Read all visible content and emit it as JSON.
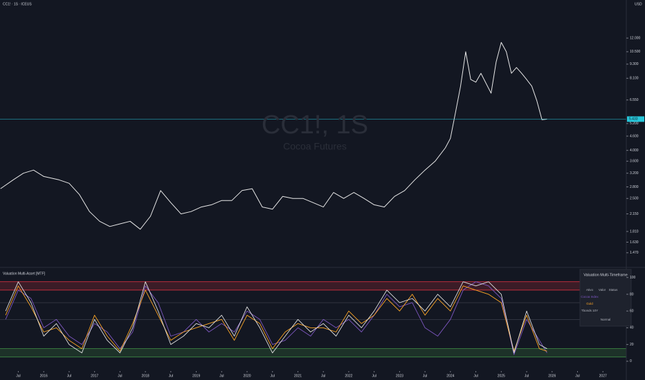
{
  "currency": "USD",
  "table": {
    "title": "Valuation Multi-Timeframe",
    "header": [
      "Ativo",
      "Valor",
      "Status"
    ],
    "rows": [
      [
        "Cocoa Index"
      ],
      [
        "Gold"
      ],
      [
        "Tbonds 10Y"
      ]
    ],
    "footer": "Normal"
  },
  "chart_data": [
    {
      "type": "line",
      "title": "CC1! · 1S · ICEUS",
      "watermark": "CC1!, 1S",
      "subtitle": "Cocoa Futures",
      "color": "#e8e8e8",
      "log_scale": true,
      "last_price": {
        "value": 5433,
        "label": "5.433"
      },
      "last_price_color": "#26c6da",
      "xlim": [
        2015.14,
        2027.46
      ],
      "ylim": [
        1300,
        16500
      ],
      "yticks": [
        {
          "value": 12000,
          "label": "12.000"
        },
        {
          "value": 10500,
          "label": "10.500"
        },
        {
          "value": 9300,
          "label": "9.300"
        },
        {
          "value": 8100,
          "label": "8.100"
        },
        {
          "value": 6550,
          "label": "6.550"
        },
        {
          "value": 5200,
          "label": "5.200"
        },
        {
          "value": 4600,
          "label": "4.600"
        },
        {
          "value": 4000,
          "label": "4.000"
        },
        {
          "value": 3600,
          "label": "3.600"
        },
        {
          "value": 3200,
          "label": "3.200"
        },
        {
          "value": 2800,
          "label": "2.800"
        },
        {
          "value": 2500,
          "label": "2.500"
        },
        {
          "value": 2150,
          "label": "2.150"
        },
        {
          "value": 1810,
          "label": "1.810"
        },
        {
          "value": 1630,
          "label": "1.630"
        },
        {
          "value": 1470,
          "label": "1.470"
        }
      ],
      "x": [
        2015.15,
        2015.4,
        2015.6,
        2015.8,
        2016.0,
        2016.3,
        2016.5,
        2016.7,
        2016.9,
        2017.1,
        2017.3,
        2017.5,
        2017.7,
        2017.9,
        2018.1,
        2018.3,
        2018.5,
        2018.7,
        2018.9,
        2019.1,
        2019.3,
        2019.5,
        2019.7,
        2019.9,
        2020.1,
        2020.3,
        2020.5,
        2020.7,
        2020.9,
        2021.1,
        2021.3,
        2021.5,
        2021.7,
        2021.9,
        2022.1,
        2022.3,
        2022.5,
        2022.7,
        2022.9,
        2023.1,
        2023.3,
        2023.5,
        2023.7,
        2023.9,
        2024.0,
        2024.1,
        2024.2,
        2024.3,
        2024.4,
        2024.5,
        2024.6,
        2024.8,
        2024.9,
        2025.0,
        2025.1,
        2025.2,
        2025.3,
        2025.4,
        2025.5,
        2025.6,
        2025.7,
        2025.8,
        2025.9
      ],
      "values": [
        2750,
        3000,
        3200,
        3300,
        3100,
        3000,
        2900,
        2600,
        2200,
        2000,
        1900,
        1950,
        2000,
        1850,
        2100,
        2700,
        2400,
        2150,
        2200,
        2300,
        2350,
        2450,
        2450,
        2700,
        2750,
        2300,
        2250,
        2550,
        2500,
        2500,
        2400,
        2300,
        2650,
        2500,
        2650,
        2500,
        2350,
        2300,
        2550,
        2700,
        3000,
        3300,
        3600,
        4100,
        4500,
        5800,
        7500,
        10500,
        8000,
        7800,
        8500,
        7000,
        9500,
        11500,
        10500,
        8500,
        9000,
        8500,
        8000,
        7500,
        6500,
        5400,
        5433
      ]
    },
    {
      "type": "line",
      "title": "Valuation Multi-Asset [MTF]",
      "xlim": [
        2015.14,
        2027.46
      ],
      "ylim": [
        -10,
        108
      ],
      "yticks": [
        0,
        20,
        40,
        60,
        80,
        100
      ],
      "bands": [
        {
          "from": 85,
          "to": 95,
          "color": "#f23645"
        },
        {
          "from": 5,
          "to": 15,
          "color": "#4caf50"
        }
      ],
      "hlines": [
        50,
        70
      ],
      "xticks": [
        {
          "value": 2015.5,
          "label": "Jul"
        },
        2016,
        {
          "value": 2016.5,
          "label": "Jul"
        },
        2017,
        {
          "value": 2017.5,
          "label": "Jul"
        },
        2018,
        {
          "value": 2018.5,
          "label": "Jul"
        },
        2019,
        {
          "value": 2019.5,
          "label": "Jul"
        },
        2020,
        {
          "value": 2020.5,
          "label": "Jul"
        },
        2021,
        {
          "value": 2021.5,
          "label": "Jul"
        },
        2022,
        {
          "value": 2022.5,
          "label": "Jul"
        },
        2023,
        {
          "value": 2023.5,
          "label": "Jul"
        },
        2024,
        {
          "value": 2024.5,
          "label": "Jul"
        },
        2025,
        {
          "value": 2025.5,
          "label": "Jul"
        },
        2026,
        {
          "value": 2026.5,
          "label": "Jul"
        },
        2027
      ],
      "x": [
        2015.25,
        2015.5,
        2015.75,
        2016,
        2016.25,
        2016.5,
        2016.75,
        2017,
        2017.25,
        2017.5,
        2017.75,
        2018,
        2018.25,
        2018.5,
        2018.75,
        2019,
        2019.25,
        2019.5,
        2019.75,
        2020,
        2020.25,
        2020.5,
        2020.75,
        2021,
        2021.25,
        2021.5,
        2021.75,
        2022,
        2022.25,
        2022.5,
        2022.75,
        2023,
        2023.25,
        2023.5,
        2023.75,
        2024,
        2024.25,
        2024.5,
        2024.75,
        2025,
        2025.25,
        2025.5,
        2025.75,
        2025.9
      ],
      "series": [
        {
          "color": "#7e57c2",
          "values": [
            50,
            85,
            75,
            40,
            50,
            30,
            20,
            45,
            35,
            15,
            35,
            90,
            70,
            30,
            35,
            50,
            35,
            45,
            35,
            60,
            50,
            20,
            25,
            40,
            30,
            50,
            40,
            50,
            35,
            55,
            80,
            65,
            70,
            40,
            30,
            50,
            85,
            95,
            90,
            75,
            8,
            50,
            25,
            10
          ]
        },
        {
          "color": "#ffa726",
          "values": [
            55,
            90,
            65,
            35,
            40,
            25,
            15,
            55,
            30,
            12,
            45,
            85,
            55,
            25,
            35,
            40,
            45,
            50,
            25,
            55,
            45,
            15,
            35,
            45,
            40,
            40,
            35,
            60,
            45,
            55,
            75,
            60,
            80,
            55,
            75,
            60,
            90,
            85,
            80,
            70,
            12,
            55,
            15,
            12
          ]
        },
        {
          "color": "#e0e0e0",
          "values": [
            60,
            95,
            70,
            30,
            45,
            20,
            10,
            50,
            25,
            10,
            40,
            95,
            60,
            20,
            30,
            45,
            40,
            55,
            30,
            65,
            40,
            10,
            30,
            50,
            35,
            45,
            30,
            55,
            40,
            60,
            85,
            70,
            75,
            60,
            80,
            65,
            95,
            90,
            95,
            80,
            10,
            60,
            20,
            15
          ]
        }
      ]
    }
  ]
}
